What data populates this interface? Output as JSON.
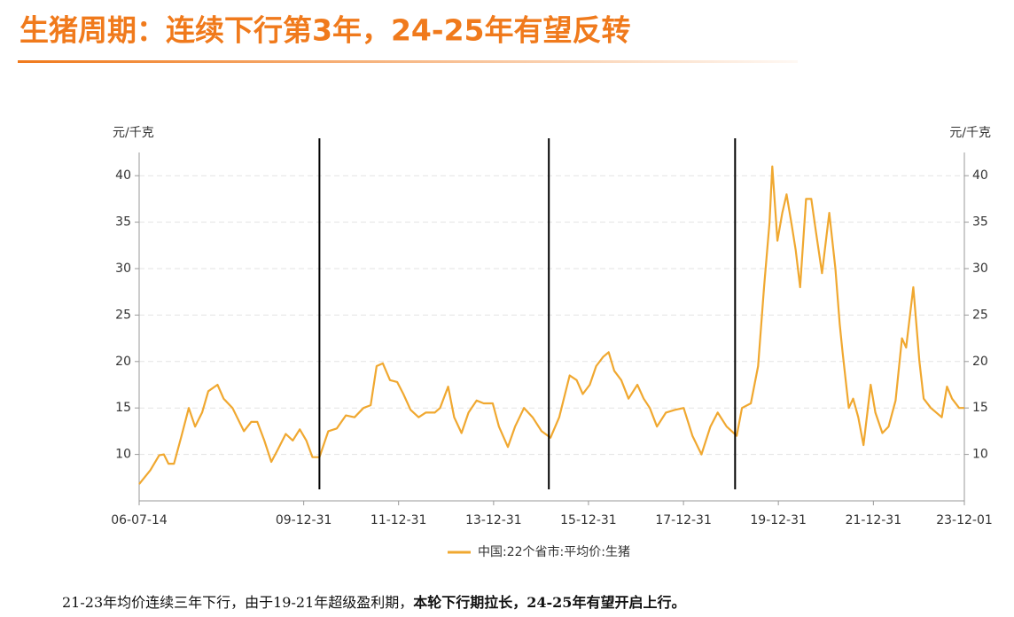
{
  "chart_data": {
    "type": "line",
    "title": "生猪周期：连续下行第3年，24-25年有望反转",
    "y_label": "元/千克",
    "y2_label": "元/千克",
    "footnote": [
      "21-23年均价连续三年下行，由于19-21年超级盈利期，",
      "本轮下行期拉长，24-25年有望开启上行。"
    ],
    "x": [
      "2006-07-14",
      "2006-10-08",
      "2006-12-15",
      "2007-01-20",
      "2007-02-25",
      "2007-04-08",
      "2007-06-05",
      "2007-07-31",
      "2007-09-17",
      "2007-11-10",
      "2007-12-28",
      "2008-03-08",
      "2008-04-24",
      "2008-07-01",
      "2008-09-27",
      "2008-11-22",
      "2009-01-08",
      "2009-03-03",
      "2009-04-26",
      "2009-06-14",
      "2009-08-15",
      "2009-10-08",
      "2009-12-01",
      "2010-01-20",
      "2010-03-08",
      "2010-05-01",
      "2010-07-08",
      "2010-09-12",
      "2010-11-20",
      "2011-01-26",
      "2011-04-05",
      "2011-05-30",
      "2011-07-15",
      "2011-09-01",
      "2011-10-26",
      "2011-12-20",
      "2012-02-06",
      "2012-04-01",
      "2012-06-02",
      "2012-07-27",
      "2012-10-04",
      "2012-11-14",
      "2013-01-15",
      "2013-03-03",
      "2013-04-28",
      "2013-06-21",
      "2013-08-22",
      "2013-10-16",
      "2013-12-24",
      "2014-02-10",
      "2014-04-20",
      "2014-06-14",
      "2014-08-22",
      "2014-10-27",
      "2015-01-04",
      "2015-03-14",
      "2015-05-20",
      "2015-08-08",
      "2015-10-01",
      "2015-11-17",
      "2016-01-10",
      "2016-02-28",
      "2016-04-22",
      "2016-06-03",
      "2016-07-16",
      "2016-09-08",
      "2016-11-03",
      "2017-01-10",
      "2017-02-28",
      "2017-04-16",
      "2017-06-10",
      "2017-08-18",
      "2017-10-27",
      "2018-01-01",
      "2018-03-10",
      "2018-05-18",
      "2018-07-26",
      "2018-09-20",
      "2018-11-28",
      "2019-02-14",
      "2019-03-26",
      "2019-06-02",
      "2019-07-28",
      "2019-09-12",
      "2019-10-24",
      "2019-11-14",
      "2019-12-24",
      "2020-01-30",
      "2020-03-03",
      "2020-04-08",
      "2020-05-12",
      "2020-06-15",
      "2020-07-31",
      "2020-09-09",
      "2020-10-15",
      "2020-12-01",
      "2021-01-26",
      "2021-03-14",
      "2021-04-16",
      "2021-05-08",
      "2021-06-25",
      "2021-07-28",
      "2021-09-06",
      "2021-10-16",
      "2021-12-10",
      "2022-01-15",
      "2022-03-10",
      "2022-04-27",
      "2022-06-20",
      "2022-08-08",
      "2022-09-09",
      "2022-11-03",
      "2022-12-20",
      "2023-01-22",
      "2023-03-18",
      "2023-06-10",
      "2023-07-20",
      "2023-08-28",
      "2023-10-22",
      "2023-12-01"
    ],
    "series": [
      {
        "name": "中国:22个省市:平均价:生猪",
        "color": "#f0a830",
        "values": [
          6.8,
          8.3,
          9.9,
          10.0,
          9.0,
          9.0,
          12.0,
          15.0,
          13.0,
          14.5,
          16.8,
          17.5,
          16.0,
          15.0,
          12.5,
          13.5,
          13.5,
          11.5,
          9.2,
          10.5,
          12.2,
          11.5,
          12.7,
          11.5,
          9.7,
          9.7,
          12.5,
          12.8,
          14.2,
          14.0,
          15.0,
          15.3,
          19.5,
          19.8,
          18.0,
          17.8,
          16.5,
          14.8,
          14.0,
          14.5,
          14.5,
          15.0,
          17.3,
          14.0,
          12.3,
          14.5,
          15.8,
          15.5,
          15.5,
          13.0,
          10.8,
          13.0,
          15.0,
          14.0,
          12.5,
          11.8,
          14.0,
          18.5,
          18.0,
          16.5,
          17.5,
          19.5,
          20.5,
          21.0,
          19.0,
          18.0,
          16.0,
          17.5,
          16.0,
          15.0,
          13.0,
          14.5,
          14.8,
          15.0,
          12.0,
          10.0,
          13.0,
          14.5,
          13.0,
          12.0,
          15.0,
          15.5,
          19.5,
          28.0,
          35.0,
          41.0,
          33.0,
          36.0,
          38.0,
          35.0,
          32.0,
          28.0,
          37.5,
          37.5,
          34.0,
          29.5,
          36.0,
          30.0,
          24.0,
          21.0,
          15.0,
          16.0,
          14.0,
          11.0,
          17.5,
          14.5,
          12.3,
          13.0,
          15.8,
          22.5,
          21.5,
          28.0,
          20.0,
          16.0,
          15.0,
          14.0,
          17.3,
          16.0,
          15.0,
          15.0
        ]
      }
    ],
    "cycle_lines": [
      "2010-05-01",
      "2015-03-01",
      "2019-02-01"
    ],
    "xlim": [
      "2006-07-14",
      "2023-12-01"
    ],
    "xticks": [
      {
        "value": "2006-07-14",
        "label": "06-07-14"
      },
      {
        "value": "2009-12-31",
        "label": "09-12-31"
      },
      {
        "value": "2011-12-31",
        "label": "11-12-31"
      },
      {
        "value": "2013-12-31",
        "label": "13-12-31"
      },
      {
        "value": "2015-12-31",
        "label": "15-12-31"
      },
      {
        "value": "2017-12-31",
        "label": "17-12-31"
      },
      {
        "value": "2019-12-31",
        "label": "19-12-31"
      },
      {
        "value": "2021-12-31",
        "label": "21-12-31"
      },
      {
        "value": "2023-12-01",
        "label": "23-12-01"
      }
    ],
    "ylim": [
      5,
      42.5
    ],
    "yticks": [
      10,
      15,
      20,
      25,
      30,
      35,
      40
    ],
    "y2lim": [
      5,
      42.5
    ],
    "y2ticks": [
      10,
      15,
      20,
      25,
      30,
      35,
      40
    ],
    "grid": true,
    "legend": "bottom"
  }
}
